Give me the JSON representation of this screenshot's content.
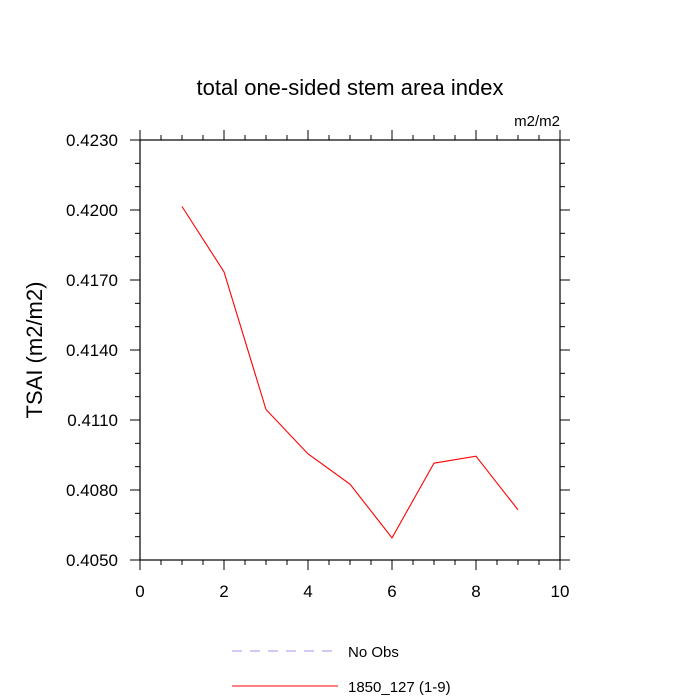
{
  "chart_data": {
    "type": "line",
    "title": "total one-sided stem area index",
    "units_label": "m2/m2",
    "ylabel": "TSAI  (m2/m2)",
    "xlabel": "",
    "xlim": [
      0,
      10
    ],
    "ylim": [
      0.405,
      0.423
    ],
    "x_ticks": [
      0,
      2,
      4,
      6,
      8,
      10
    ],
    "x_tick_labels": [
      "0",
      "2",
      "4",
      "6",
      "8",
      "10"
    ],
    "y_ticks": [
      0.405,
      0.408,
      0.411,
      0.414,
      0.417,
      0.42,
      0.423
    ],
    "y_tick_labels": [
      "0.4050",
      "0.4080",
      "0.4110",
      "0.4140",
      "0.4170",
      "0.4200",
      "0.4230"
    ],
    "grid": false,
    "legend_position": "bottom",
    "series": [
      {
        "name": "No Obs",
        "color": "#9999ee",
        "dash": true,
        "x": [],
        "y": []
      },
      {
        "name": "1850_127 (1-9)",
        "color": "#ff0000",
        "dash": false,
        "x": [
          1,
          2,
          3,
          4,
          5,
          6,
          7,
          8,
          9
        ],
        "y": [
          0.42015,
          0.41735,
          0.41145,
          0.40955,
          0.40825,
          0.40595,
          0.40915,
          0.40945,
          0.40715
        ]
      }
    ]
  }
}
